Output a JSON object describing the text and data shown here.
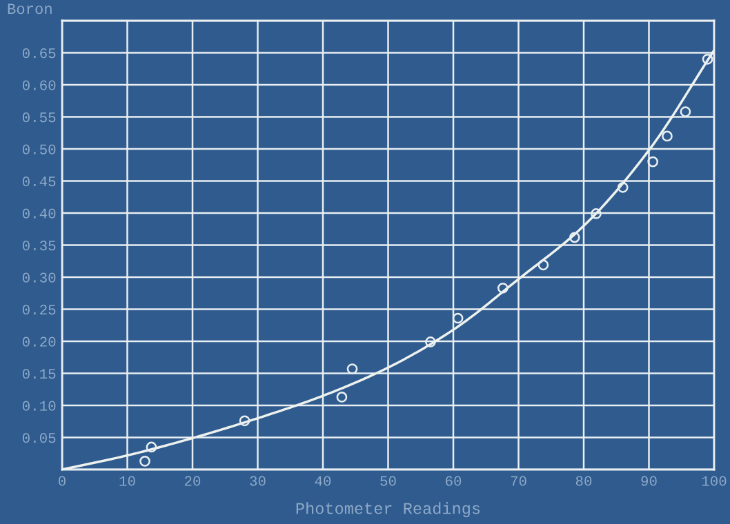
{
  "chart_data": {
    "type": "scatter",
    "ylabel": "Boron",
    "xlabel": "Photometer Readings",
    "xlim": [
      0,
      100
    ],
    "ylim": [
      0,
      0.7
    ],
    "xticks": [
      0,
      10,
      20,
      30,
      40,
      50,
      60,
      70,
      80,
      90,
      100
    ],
    "yticks": [
      {
        "value": 0,
        "label": null
      },
      0.05,
      {
        "value": 0.1,
        "label": "0.10"
      },
      0.15,
      {
        "value": 0.2,
        "label": "0.20"
      },
      0.25,
      {
        "value": 0.3,
        "label": "0.30"
      },
      0.35,
      {
        "value": 0.4,
        "label": "0.40"
      },
      0.45,
      {
        "value": 0.5,
        "label": "0.50"
      },
      0.55,
      {
        "value": 0.6,
        "label": "0.60"
      },
      0.65,
      {
        "value": 0.7,
        "label": null
      }
    ],
    "grid": true,
    "series": [
      {
        "marker": "circle",
        "color": "#e8eef2",
        "x": [
          12.7,
          13.7,
          28.0,
          42.9,
          44.5,
          56.5,
          60.7,
          67.6,
          73.8,
          78.6,
          81.9,
          86.0,
          90.6,
          92.8,
          95.6,
          99.0
        ],
        "values": [
          0.013,
          0.035,
          0.076,
          0.113,
          0.157,
          0.199,
          0.236,
          0.283,
          0.319,
          0.362,
          0.399,
          0.44,
          0.48,
          0.52,
          0.558,
          0.64
        ]
      },
      {
        "type": "line",
        "color": "#eef2ee",
        "x": [
          0,
          10,
          20,
          30,
          40,
          50,
          60,
          70,
          80,
          90,
          100
        ],
        "values": [
          0,
          0.022,
          0.049,
          0.08,
          0.115,
          0.159,
          0.218,
          0.297,
          0.38,
          0.498,
          0.654
        ]
      }
    ]
  }
}
